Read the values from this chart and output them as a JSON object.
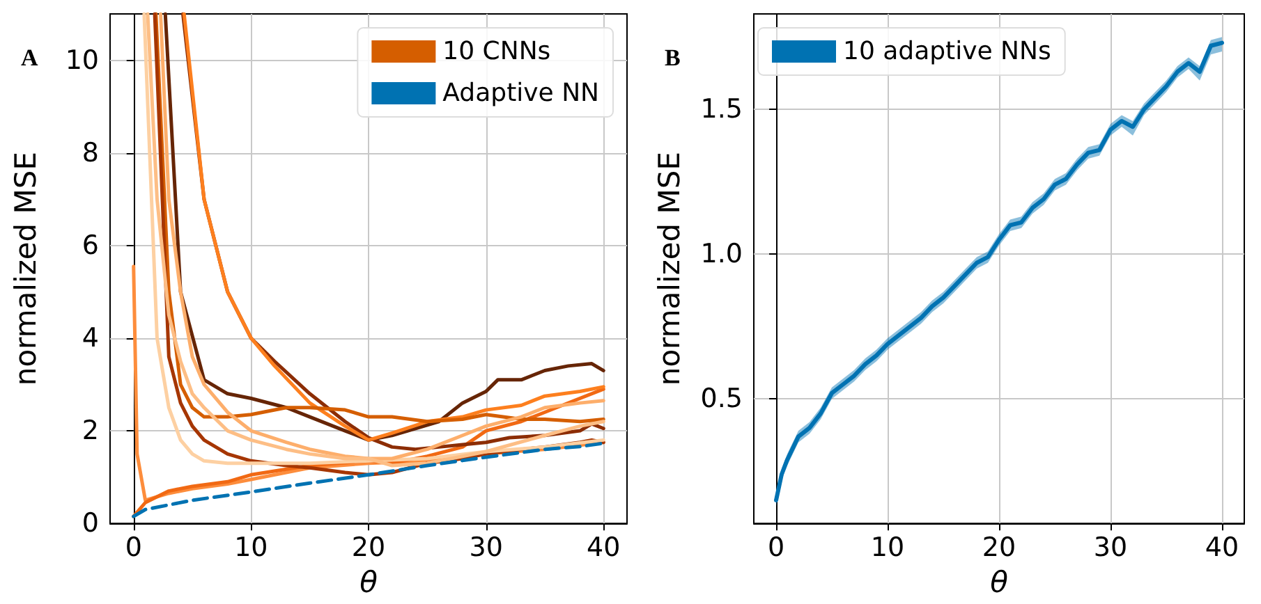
{
  "chart_data": [
    {
      "type": "line",
      "title": "A",
      "xlabel": "θ",
      "ylabel": "normalized MSE",
      "xlim": [
        -2,
        42
      ],
      "ylim": [
        0,
        11
      ],
      "xticks": [
        0,
        10,
        20,
        30,
        40
      ],
      "yticks": [
        0,
        2,
        4,
        6,
        8,
        10
      ],
      "grid": true,
      "legend": "top right",
      "marker": "none",
      "line_style": "solid",
      "series": [
        {
          "color": "#fd8d3c",
          "x": [
            0,
            0.3,
            1,
            3,
            5,
            8,
            10,
            15,
            20,
            25,
            30,
            35,
            40
          ],
          "values": [
            5.55,
            1.5,
            0.5,
            0.65,
            0.75,
            0.85,
            0.95,
            1.2,
            1.3,
            1.35,
            1.5,
            1.6,
            1.75
          ]
        },
        {
          "color": "#f16913",
          "x": [
            0,
            1,
            3,
            5,
            8,
            10,
            15,
            20,
            22,
            25,
            28,
            30,
            33,
            36,
            40
          ],
          "values": [
            0.15,
            0.45,
            0.7,
            0.8,
            0.9,
            1.05,
            1.25,
            1.35,
            1.3,
            1.45,
            1.65,
            2.0,
            2.2,
            2.5,
            2.9
          ]
        },
        {
          "color": "#662506",
          "x": [
            2.7,
            4,
            6,
            8,
            10,
            13,
            15,
            18,
            20,
            22,
            24,
            26,
            28,
            30,
            31,
            33,
            35,
            37,
            39,
            40
          ],
          "values": [
            11,
            5,
            3.1,
            2.8,
            2.7,
            2.5,
            2.3,
            2.0,
            1.8,
            1.9,
            2.05,
            2.2,
            2.6,
            2.85,
            3.1,
            3.1,
            3.3,
            3.4,
            3.45,
            3.3
          ]
        },
        {
          "color": "#8c2d04",
          "x": [
            4.2,
            6,
            8,
            10,
            12,
            15,
            18,
            20,
            22,
            24,
            26,
            28,
            30,
            32,
            35,
            38,
            39,
            40
          ],
          "values": [
            11,
            7,
            5,
            4,
            3.5,
            2.8,
            2.2,
            1.85,
            1.65,
            1.6,
            1.65,
            1.7,
            1.75,
            1.85,
            1.9,
            2.0,
            2.15,
            2.05
          ]
        },
        {
          "color": "#fd7f1e",
          "x": [
            4.3,
            6,
            8,
            10,
            12,
            15,
            18,
            20,
            22,
            25,
            28,
            30,
            33,
            35,
            38,
            40
          ],
          "values": [
            11,
            7,
            5,
            4,
            3.4,
            2.6,
            2.1,
            1.8,
            1.95,
            2.2,
            2.3,
            2.45,
            2.55,
            2.75,
            2.85,
            2.95
          ]
        },
        {
          "name": "10 CNNs",
          "color": "#d55e00",
          "x": [
            1.9,
            3,
            4,
            5,
            6,
            8,
            10,
            13,
            15,
            18,
            20,
            22,
            25,
            28,
            30,
            33,
            35,
            38,
            40
          ],
          "values": [
            11,
            5,
            3,
            2.5,
            2.3,
            2.3,
            2.35,
            2.5,
            2.5,
            2.45,
            2.3,
            2.3,
            2.2,
            2.25,
            2.35,
            2.25,
            2.25,
            2.2,
            2.25
          ]
        },
        {
          "color": "#a63603",
          "x": [
            1.8,
            3,
            4,
            5,
            6,
            8,
            10,
            13,
            15,
            18,
            20,
            22,
            25,
            28,
            30,
            33,
            35,
            38,
            39,
            40
          ],
          "values": [
            11,
            3.6,
            2.6,
            2.1,
            1.8,
            1.5,
            1.35,
            1.25,
            1.2,
            1.1,
            1.05,
            1.1,
            1.3,
            1.4,
            1.5,
            1.6,
            1.65,
            1.75,
            1.8,
            1.75
          ]
        },
        {
          "color": "#fdd0a2",
          "x": [
            0.9,
            2,
            3,
            4,
            5,
            6,
            8,
            10,
            15,
            20,
            25,
            30,
            35,
            40
          ],
          "values": [
            11,
            4,
            2.5,
            1.8,
            1.5,
            1.35,
            1.3,
            1.3,
            1.3,
            1.35,
            1.4,
            1.55,
            1.65,
            1.8
          ]
        },
        {
          "color": "#fdae6b",
          "x": [
            2.3,
            3,
            4,
            5,
            6,
            8,
            10,
            13,
            15,
            18,
            20,
            22,
            25,
            28,
            30,
            33,
            35,
            38,
            40
          ],
          "values": [
            11,
            7,
            5,
            3.6,
            3.0,
            2.4,
            2.0,
            1.75,
            1.6,
            1.45,
            1.4,
            1.4,
            1.6,
            1.9,
            2.1,
            2.3,
            2.5,
            2.6,
            2.65
          ]
        },
        {
          "color": "#fdbe85",
          "x": [
            1.2,
            2,
            3,
            4,
            5,
            6,
            8,
            10,
            13,
            15,
            18,
            20,
            22,
            25,
            28,
            30,
            35,
            38,
            40
          ],
          "values": [
            11,
            7,
            4.5,
            3.5,
            2.8,
            2.5,
            2.0,
            1.8,
            1.6,
            1.5,
            1.4,
            1.4,
            1.25,
            1.3,
            1.45,
            1.55,
            1.9,
            2.1,
            2.2
          ]
        },
        {
          "name": "Adaptive NN",
          "color": "#0072b2",
          "line_style": "dashed",
          "x": [
            0,
            1,
            3,
            5,
            10,
            15,
            20,
            25,
            30,
            35,
            38,
            40
          ],
          "values": [
            0.15,
            0.3,
            0.4,
            0.5,
            0.68,
            0.87,
            1.05,
            1.25,
            1.43,
            1.6,
            1.66,
            1.73
          ]
        }
      ]
    },
    {
      "type": "line",
      "title": "B",
      "xlabel": "θ",
      "ylabel": "normalized MSE",
      "xlim": [
        -2,
        42
      ],
      "ylim": [
        0.07,
        1.83
      ],
      "xticks": [
        0,
        10,
        20,
        30,
        40
      ],
      "yticks": [
        0.5,
        {
          "value": 1,
          "label": "1.0"
        },
        1.5
      ],
      "grid": true,
      "legend": "top left",
      "marker": "none",
      "line_style": "solid",
      "series": [
        {
          "name": "10 adaptive NNs",
          "color": "#0072b2",
          "x": [
            0,
            0.5,
            1,
            2,
            3,
            4,
            5,
            6,
            7,
            8,
            9,
            10,
            11,
            12,
            13,
            14,
            15,
            16,
            17,
            18,
            19,
            20,
            21,
            22,
            23,
            24,
            25,
            26,
            27,
            28,
            29,
            30,
            31,
            32,
            33,
            34,
            35,
            36,
            37,
            38,
            39,
            40
          ],
          "values": [
            0.15,
            0.24,
            0.29,
            0.37,
            0.4,
            0.45,
            0.52,
            0.55,
            0.58,
            0.62,
            0.65,
            0.69,
            0.72,
            0.75,
            0.78,
            0.82,
            0.85,
            0.89,
            0.93,
            0.97,
            0.99,
            1.05,
            1.1,
            1.11,
            1.16,
            1.19,
            1.24,
            1.26,
            1.31,
            1.35,
            1.36,
            1.43,
            1.46,
            1.44,
            1.5,
            1.54,
            1.58,
            1.63,
            1.66,
            1.63,
            1.72,
            1.73
          ],
          "lower": [
            0.13,
            0.22,
            0.27,
            0.35,
            0.38,
            0.43,
            0.5,
            0.53,
            0.56,
            0.6,
            0.63,
            0.67,
            0.7,
            0.73,
            0.76,
            0.8,
            0.83,
            0.87,
            0.91,
            0.95,
            0.97,
            1.03,
            1.08,
            1.09,
            1.14,
            1.17,
            1.22,
            1.24,
            1.29,
            1.33,
            1.34,
            1.41,
            1.44,
            1.41,
            1.48,
            1.52,
            1.56,
            1.61,
            1.64,
            1.6,
            1.69,
            1.7
          ],
          "upper": [
            0.17,
            0.26,
            0.31,
            0.39,
            0.42,
            0.47,
            0.54,
            0.57,
            0.6,
            0.64,
            0.67,
            0.71,
            0.74,
            0.77,
            0.8,
            0.84,
            0.87,
            0.91,
            0.95,
            0.99,
            1.01,
            1.07,
            1.12,
            1.13,
            1.18,
            1.21,
            1.26,
            1.28,
            1.33,
            1.37,
            1.38,
            1.45,
            1.48,
            1.46,
            1.52,
            1.56,
            1.6,
            1.65,
            1.68,
            1.65,
            1.74,
            1.75
          ]
        }
      ]
    }
  ]
}
